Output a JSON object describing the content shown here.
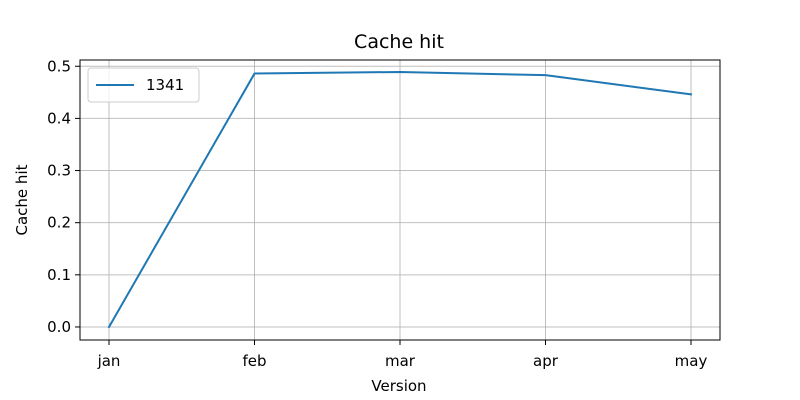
{
  "chart_data": {
    "type": "line",
    "title": "Cache hit",
    "xlabel": "Version",
    "ylabel": "Cache hit",
    "categories": [
      "jan",
      "feb",
      "mar",
      "apr",
      "may"
    ],
    "series": [
      {
        "name": "1341",
        "color": "#1f77b4",
        "values": [
          0.0,
          0.486,
          0.489,
          0.483,
          0.446
        ]
      }
    ],
    "ylim": [
      -0.025,
      0.512
    ],
    "yticks": [
      0.0,
      0.1,
      0.2,
      0.3,
      0.4,
      0.5
    ],
    "ytick_labels": [
      "0.0",
      "0.1",
      "0.2",
      "0.3",
      "0.4",
      "0.5"
    ],
    "grid": true,
    "legend_position": "top-left"
  }
}
